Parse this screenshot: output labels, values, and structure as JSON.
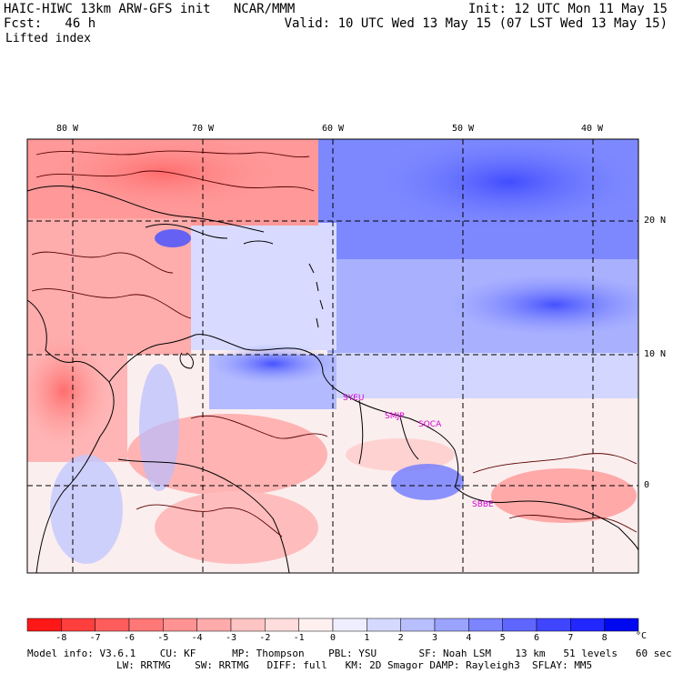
{
  "header": {
    "left_line1": "HAIC-HIWC 13km ARW-GFS init   NCAR/MMM",
    "left_line2": "Fcst:   46 h",
    "left_line3": "Lifted index",
    "right_line1": "Init: 12 UTC Mon 11 May 15",
    "right_line2": "Valid: 10 UTC Wed 13 May 15 (07 LST Wed 13 May 15)"
  },
  "map": {
    "lon_labels": [
      "80 W",
      "70 W",
      "60 W",
      "50 W",
      "40 W"
    ],
    "lat_labels": [
      "20 N",
      "10 N",
      "0"
    ],
    "cities": [
      "SYEU",
      "SMJP",
      "SOCA",
      "SBBE"
    ]
  },
  "colorbar": {
    "ticks": [
      "-8",
      "-7",
      "-6",
      "-5",
      "-4",
      "-3",
      "-2",
      "-1",
      "0",
      "1",
      "2",
      "3",
      "4",
      "5",
      "6",
      "7",
      "8"
    ],
    "unit": "°C",
    "colors": [
      "#ff1818",
      "#ff3e3e",
      "#ff5c5c",
      "#ff7777",
      "#ff9292",
      "#ffabab",
      "#ffc4c4",
      "#ffdddd",
      "#fff0f0",
      "#eeeeff",
      "#d6d9ff",
      "#b8bfff",
      "#9aa3ff",
      "#7c85ff",
      "#5e66ff",
      "#4046ff",
      "#2227ff",
      "#0008f0"
    ]
  },
  "footer": {
    "line1": "Model info: V3.6.1    CU: KF      MP: Thompson    PBL: YSU       SF: Noah LSM    13 km   51 levels   60 sec",
    "line2": "LW: RRTMG    SW: RRTMG   DIFF: full   KM: 2D Smagor DAMP: Rayleigh3  SFLAY: MM5"
  }
}
